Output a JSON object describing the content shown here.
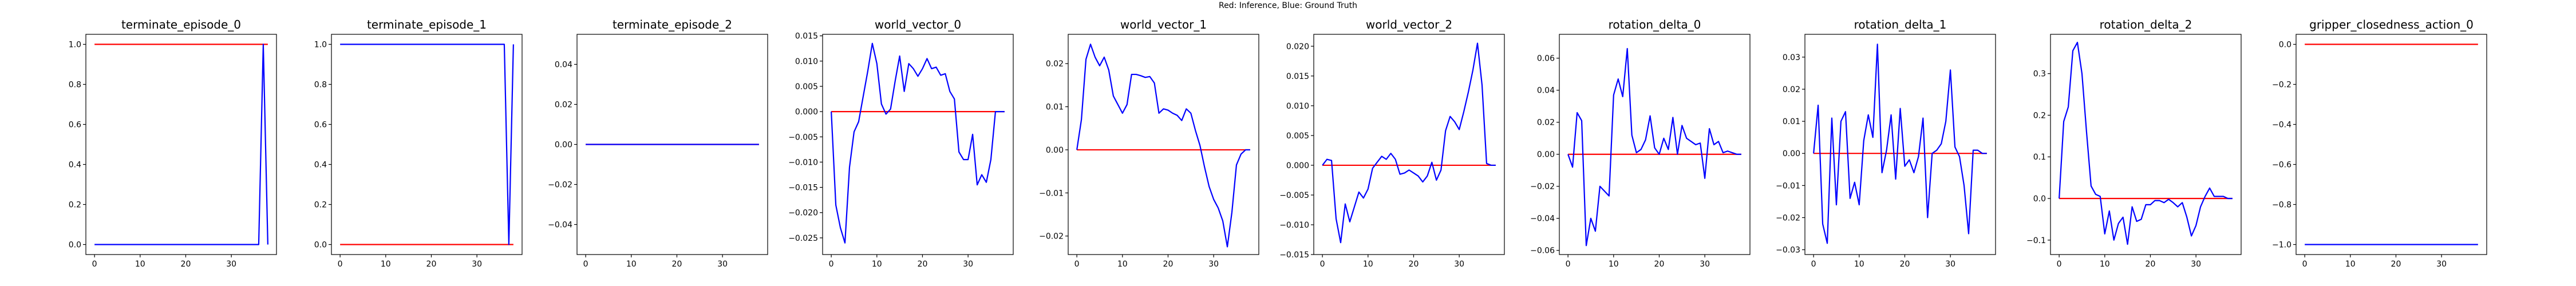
{
  "figure": {
    "suptitle": "Red: Inference, Blue: Ground Truth",
    "colors": {
      "inference": "#ff0000",
      "ground_truth": "#0000ff",
      "axes": "#000000"
    }
  },
  "chart_data": [
    {
      "type": "line",
      "title": "terminate_episode_0",
      "xlim": [
        -1.9,
        39.9
      ],
      "ylim": [
        -0.05,
        1.05
      ],
      "xticks": [
        0,
        10,
        20,
        30
      ],
      "yticks": [
        0.0,
        0.2,
        0.4,
        0.6,
        0.8,
        1.0
      ],
      "ytick_labels": [
        "0.0",
        "0.2",
        "0.4",
        "0.6",
        "0.8",
        "1.0"
      ],
      "series": [
        {
          "role": "inference",
          "color": "#ff0000",
          "x": [
            0,
            38
          ],
          "y": [
            1,
            1
          ]
        },
        {
          "role": "ground_truth",
          "color": "#0000ff",
          "x": [
            0,
            36,
            37,
            38
          ],
          "y": [
            0,
            0,
            1,
            0
          ]
        }
      ]
    },
    {
      "type": "line",
      "title": "terminate_episode_1",
      "xlim": [
        -1.9,
        39.9
      ],
      "ylim": [
        -0.05,
        1.05
      ],
      "xticks": [
        0,
        10,
        20,
        30
      ],
      "yticks": [
        0.0,
        0.2,
        0.4,
        0.6,
        0.8,
        1.0
      ],
      "ytick_labels": [
        "0.0",
        "0.2",
        "0.4",
        "0.6",
        "0.8",
        "1.0"
      ],
      "series": [
        {
          "role": "inference",
          "color": "#ff0000",
          "x": [
            0,
            38
          ],
          "y": [
            0,
            0
          ]
        },
        {
          "role": "ground_truth",
          "color": "#0000ff",
          "x": [
            0,
            36,
            37,
            38
          ],
          "y": [
            1,
            1,
            0,
            1
          ]
        }
      ]
    },
    {
      "type": "line",
      "title": "terminate_episode_2",
      "xlim": [
        -1.9,
        39.9
      ],
      "ylim": [
        -0.055,
        0.055
      ],
      "xticks": [
        0,
        10,
        20,
        30
      ],
      "yticks": [
        -0.04,
        -0.02,
        0.0,
        0.02,
        0.04
      ],
      "ytick_labels": [
        "−0.04",
        "−0.02",
        "0.00",
        "0.02",
        "0.04"
      ],
      "series": [
        {
          "role": "inference",
          "color": "#ff0000",
          "x": [
            0,
            38
          ],
          "y": [
            0,
            0
          ]
        },
        {
          "role": "ground_truth",
          "color": "#0000ff",
          "x": [
            0,
            38
          ],
          "y": [
            0,
            0
          ]
        }
      ]
    },
    {
      "type": "line",
      "title": "world_vector_0",
      "xlim": [
        -1.9,
        39.9
      ],
      "ylim": [
        -0.0283,
        0.0153
      ],
      "xticks": [
        0,
        10,
        20,
        30
      ],
      "yticks": [
        -0.025,
        -0.02,
        -0.015,
        -0.01,
        -0.005,
        0.0,
        0.005,
        0.01,
        0.015
      ],
      "ytick_labels": [
        "−0.025",
        "−0.020",
        "−0.015",
        "−0.010",
        "−0.005",
        "0.000",
        "0.005",
        "0.010",
        "0.015"
      ],
      "series": [
        {
          "role": "inference",
          "color": "#ff0000",
          "x": [
            0,
            38
          ],
          "y": [
            0,
            0
          ]
        },
        {
          "role": "ground_truth",
          "color": "#0000ff",
          "x": [
            0,
            1,
            2,
            3,
            4,
            5,
            6,
            7,
            8,
            9,
            10,
            11,
            12,
            13,
            14,
            15,
            16,
            17,
            18,
            19,
            20,
            21,
            22,
            23,
            24,
            25,
            26,
            27,
            28,
            29,
            30,
            31,
            32,
            33,
            34,
            35,
            36,
            37,
            38
          ],
          "y": [
            0.0,
            -0.0185,
            -0.023,
            -0.026,
            -0.011,
            -0.004,
            -0.002,
            0.003,
            0.008,
            0.0135,
            0.0095,
            0.0015,
            -0.0005,
            0.0005,
            0.006,
            0.011,
            0.004,
            0.0095,
            0.0085,
            0.007,
            0.0085,
            0.0105,
            0.0085,
            0.0088,
            0.0072,
            0.0075,
            0.004,
            0.0025,
            -0.008,
            -0.0095,
            -0.0095,
            -0.0045,
            -0.0145,
            -0.0125,
            -0.014,
            -0.0095,
            0.0,
            0.0,
            0.0
          ]
        }
      ]
    },
    {
      "type": "line",
      "title": "world_vector_1",
      "xlim": [
        -1.9,
        39.9
      ],
      "ylim": [
        -0.0243,
        0.0268
      ],
      "xticks": [
        0,
        10,
        20,
        30
      ],
      "yticks": [
        -0.02,
        -0.01,
        0.0,
        0.01,
        0.02
      ],
      "ytick_labels": [
        "−0.02",
        "−0.01",
        "0.00",
        "0.01",
        "0.02"
      ],
      "series": [
        {
          "role": "inference",
          "color": "#ff0000",
          "x": [
            0,
            38
          ],
          "y": [
            0,
            0
          ]
        },
        {
          "role": "ground_truth",
          "color": "#0000ff",
          "x": [
            0,
            1,
            2,
            3,
            4,
            5,
            6,
            7,
            8,
            9,
            10,
            11,
            12,
            13,
            14,
            15,
            16,
            17,
            18,
            19,
            20,
            21,
            22,
            23,
            24,
            25,
            26,
            27,
            28,
            29,
            30,
            31,
            32,
            33,
            34,
            35,
            36,
            37,
            38
          ],
          "y": [
            0.0,
            0.007,
            0.021,
            0.0245,
            0.0215,
            0.0195,
            0.0215,
            0.0185,
            0.0125,
            0.0105,
            0.0085,
            0.0105,
            0.0175,
            0.0175,
            0.0172,
            0.0168,
            0.017,
            0.0155,
            0.0085,
            0.0095,
            0.0092,
            0.0085,
            0.008,
            0.0068,
            0.0095,
            0.0085,
            0.0045,
            0.001,
            -0.004,
            -0.0085,
            -0.0115,
            -0.0135,
            -0.0165,
            -0.0225,
            -0.0145,
            -0.0035,
            -0.001,
            0.0,
            0.0
          ]
        }
      ]
    },
    {
      "type": "line",
      "title": "world_vector_2",
      "xlim": [
        -1.9,
        39.9
      ],
      "ylim": [
        -0.015,
        0.022
      ],
      "xticks": [
        0,
        10,
        20,
        30
      ],
      "yticks": [
        -0.015,
        -0.01,
        -0.005,
        0.0,
        0.005,
        0.01,
        0.015,
        0.02
      ],
      "ytick_labels": [
        "−0.015",
        "−0.010",
        "−0.005",
        "0.000",
        "0.005",
        "0.010",
        "0.015",
        "0.020"
      ],
      "series": [
        {
          "role": "inference",
          "color": "#ff0000",
          "x": [
            0,
            38
          ],
          "y": [
            0,
            0
          ]
        },
        {
          "role": "ground_truth",
          "color": "#0000ff",
          "x": [
            0,
            1,
            2,
            3,
            4,
            5,
            6,
            7,
            8,
            9,
            10,
            11,
            12,
            13,
            14,
            15,
            16,
            17,
            18,
            19,
            20,
            21,
            22,
            23,
            24,
            25,
            26,
            27,
            28,
            29,
            30,
            31,
            32,
            33,
            34,
            35,
            36,
            37,
            38
          ],
          "y": [
            0.0,
            0.001,
            0.0008,
            -0.009,
            -0.013,
            -0.0065,
            -0.0095,
            -0.007,
            -0.0045,
            -0.0055,
            -0.004,
            -0.0005,
            0.0005,
            0.0015,
            0.001,
            0.002,
            0.001,
            -0.0015,
            -0.0013,
            -0.0008,
            -0.0013,
            -0.0018,
            -0.0028,
            -0.0018,
            0.0005,
            -0.0025,
            -0.0008,
            0.0058,
            0.0082,
            0.0073,
            0.006,
            0.009,
            0.0123,
            0.016,
            0.0205,
            0.0135,
            0.0003,
            0.0,
            0.0
          ]
        }
      ]
    },
    {
      "type": "line",
      "title": "rotation_delta_0",
      "xlim": [
        -1.9,
        39.9
      ],
      "ylim": [
        -0.0626,
        0.0749
      ],
      "xticks": [
        0,
        10,
        20,
        30
      ],
      "yticks": [
        -0.06,
        -0.04,
        -0.02,
        0.0,
        0.02,
        0.04,
        0.06
      ],
      "ytick_labels": [
        "−0.06",
        "−0.04",
        "−0.02",
        "0.00",
        "0.02",
        "0.04",
        "0.06"
      ],
      "series": [
        {
          "role": "inference",
          "color": "#ff0000",
          "x": [
            0,
            38
          ],
          "y": [
            0,
            0
          ]
        },
        {
          "role": "ground_truth",
          "color": "#0000ff",
          "x": [
            0,
            1,
            2,
            3,
            4,
            5,
            6,
            7,
            8,
            9,
            10,
            11,
            12,
            13,
            14,
            15,
            16,
            17,
            18,
            19,
            20,
            21,
            22,
            23,
            24,
            25,
            26,
            27,
            28,
            29,
            30,
            31,
            32,
            33,
            34,
            35,
            36,
            37,
            38
          ],
          "y": [
            0.0,
            -0.008,
            0.026,
            0.021,
            -0.057,
            -0.04,
            -0.048,
            -0.02,
            -0.023,
            -0.026,
            0.037,
            0.047,
            0.036,
            0.066,
            0.012,
            0.001,
            0.003,
            0.009,
            0.024,
            0.004,
            0.0,
            0.01,
            0.003,
            0.023,
            0.0,
            0.018,
            0.01,
            0.008,
            0.006,
            0.007,
            -0.015,
            0.016,
            0.006,
            0.008,
            0.001,
            0.002,
            0.001,
            0.0,
            0.0
          ]
        }
      ]
    },
    {
      "type": "line",
      "title": "rotation_delta_1",
      "xlim": [
        -1.9,
        39.9
      ],
      "ylim": [
        -0.0315,
        0.0371
      ],
      "xticks": [
        0,
        10,
        20,
        30
      ],
      "yticks": [
        -0.03,
        -0.02,
        -0.01,
        0.0,
        0.01,
        0.02,
        0.03
      ],
      "ytick_labels": [
        "−0.03",
        "−0.02",
        "−0.01",
        "0.00",
        "0.01",
        "0.02",
        "0.03"
      ],
      "series": [
        {
          "role": "inference",
          "color": "#ff0000",
          "x": [
            0,
            38
          ],
          "y": [
            0,
            0
          ]
        },
        {
          "role": "ground_truth",
          "color": "#0000ff",
          "x": [
            0,
            1,
            2,
            3,
            4,
            5,
            6,
            7,
            8,
            9,
            10,
            11,
            12,
            13,
            14,
            15,
            16,
            17,
            18,
            19,
            20,
            21,
            22,
            23,
            24,
            25,
            26,
            27,
            28,
            29,
            30,
            31,
            32,
            33,
            34,
            35,
            36,
            37,
            38
          ],
          "y": [
            0.0,
            0.015,
            -0.022,
            -0.028,
            0.011,
            -0.016,
            0.01,
            0.013,
            -0.014,
            -0.009,
            -0.016,
            0.004,
            0.012,
            0.005,
            0.034,
            -0.006,
            0.001,
            0.012,
            -0.008,
            0.014,
            -0.004,
            -0.002,
            -0.006,
            -0.001,
            0.011,
            -0.02,
            0.0,
            0.001,
            0.003,
            0.01,
            0.026,
            0.002,
            -0.001,
            -0.01,
            -0.025,
            0.001,
            0.001,
            0.0,
            0.0
          ]
        }
      ]
    },
    {
      "type": "line",
      "title": "rotation_delta_2",
      "xlim": [
        -1.9,
        39.9
      ],
      "ylim": [
        -0.1347,
        0.3944
      ],
      "xticks": [
        0,
        10,
        20,
        30
      ],
      "yticks": [
        -0.1,
        0.0,
        0.1,
        0.2,
        0.3
      ],
      "ytick_labels": [
        "−0.1",
        "0.0",
        "0.1",
        "0.2",
        "0.3"
      ],
      "series": [
        {
          "role": "inference",
          "color": "#ff0000",
          "x": [
            0,
            38
          ],
          "y": [
            0,
            0
          ]
        },
        {
          "role": "ground_truth",
          "color": "#0000ff",
          "x": [
            0,
            1,
            2,
            3,
            4,
            5,
            6,
            7,
            8,
            9,
            10,
            11,
            12,
            13,
            14,
            15,
            16,
            17,
            18,
            19,
            20,
            21,
            22,
            23,
            24,
            25,
            26,
            27,
            28,
            29,
            30,
            31,
            32,
            33,
            34,
            35,
            36,
            37,
            38
          ],
          "y": [
            0.0,
            0.185,
            0.22,
            0.355,
            0.375,
            0.3,
            0.16,
            0.03,
            0.01,
            0.005,
            -0.085,
            -0.03,
            -0.1,
            -0.06,
            -0.045,
            -0.11,
            -0.02,
            -0.055,
            -0.05,
            -0.015,
            -0.015,
            -0.005,
            -0.005,
            -0.01,
            -0.002,
            -0.01,
            -0.02,
            -0.01,
            -0.045,
            -0.09,
            -0.065,
            -0.02,
            0.005,
            0.025,
            0.005,
            0.005,
            0.005,
            0.0,
            0.0
          ]
        }
      ]
    },
    {
      "type": "line",
      "title": "gripper_closedness_action_0",
      "xlim": [
        -1.9,
        39.9
      ],
      "ylim": [
        -1.05,
        0.05
      ],
      "xticks": [
        0,
        10,
        20,
        30
      ],
      "yticks": [
        -1.0,
        -0.8,
        -0.6,
        -0.4,
        -0.2,
        0.0
      ],
      "ytick_labels": [
        "−1.0",
        "−0.8",
        "−0.6",
        "−0.4",
        "−0.2",
        "0.0"
      ],
      "series": [
        {
          "role": "inference",
          "color": "#ff0000",
          "x": [
            0,
            38
          ],
          "y": [
            0,
            0
          ]
        },
        {
          "role": "ground_truth",
          "color": "#0000ff",
          "x": [
            0,
            38
          ],
          "y": [
            -1,
            -1
          ]
        }
      ]
    }
  ]
}
